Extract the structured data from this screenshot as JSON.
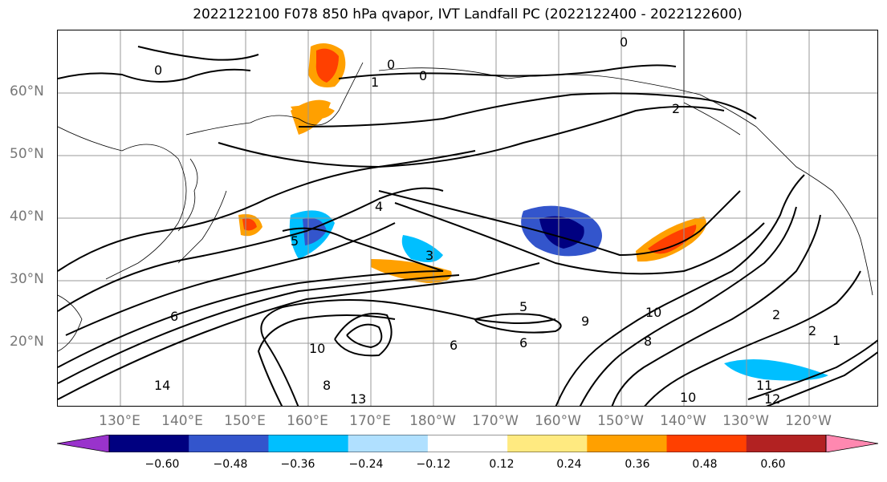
{
  "title": "2022122100 F078 850 hPa qvapor, IVT Landfall PC (2022122400 - 2022122600)",
  "map": {
    "lat_labels": [
      "60°N",
      "50°N",
      "40°N",
      "30°N",
      "20°N"
    ],
    "lon_labels": [
      "130°E",
      "140°E",
      "150°E",
      "160°E",
      "170°E",
      "180°W",
      "170°W",
      "160°W",
      "150°W",
      "140°W",
      "130°W",
      "120°W"
    ],
    "contour_labels": [
      "0",
      "0",
      "0",
      "0",
      "1",
      "2",
      "4",
      "3",
      "5",
      "5",
      "6",
      "6",
      "6",
      "8",
      "9",
      "10",
      "10",
      "11",
      "12",
      "13",
      "14",
      "2",
      "2",
      "1",
      "8"
    ]
  },
  "colorbar": {
    "tick_labels": [
      "−0.60",
      "−0.48",
      "−0.36",
      "−0.24",
      "−0.12",
      "0.12",
      "0.24",
      "0.36",
      "0.48",
      "0.60"
    ],
    "colors": [
      "#9933cc",
      "#000080",
      "#3355cc",
      "#00bfff",
      "#b0e0ff",
      "#ffffff",
      "#ffea80",
      "#ffa000",
      "#ff4000",
      "#b22222",
      "#ff88b0"
    ]
  }
}
